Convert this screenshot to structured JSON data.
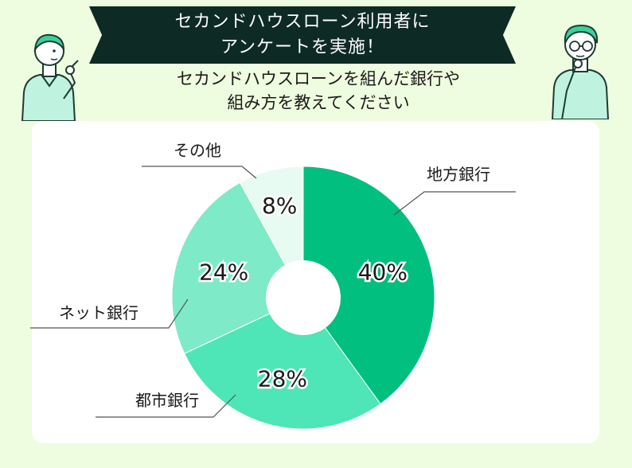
{
  "banner": {
    "line1": "セカンドハウスローン利用者に",
    "line2": "アンケートを実施！"
  },
  "subtitle": {
    "line1": "セカンドハウスローンを組んだ銀行や",
    "line2": "組み方を教えてください"
  },
  "colors": {
    "background": "#eefcdf",
    "banner": "#0d2a24",
    "slice_chihou": "#00bf7f",
    "slice_toshi": "#4ee5b7",
    "slice_net": "#7eeac8",
    "slice_other": "#e7fbf2"
  },
  "chart_data": {
    "type": "pie",
    "donut": true,
    "title": "",
    "categories": [
      "地方銀行",
      "都市銀行",
      "ネット銀行",
      "その他"
    ],
    "values": [
      40,
      28,
      24,
      8
    ],
    "value_labels": [
      "40%",
      "28%",
      "24%",
      "8%"
    ],
    "units": "%"
  }
}
